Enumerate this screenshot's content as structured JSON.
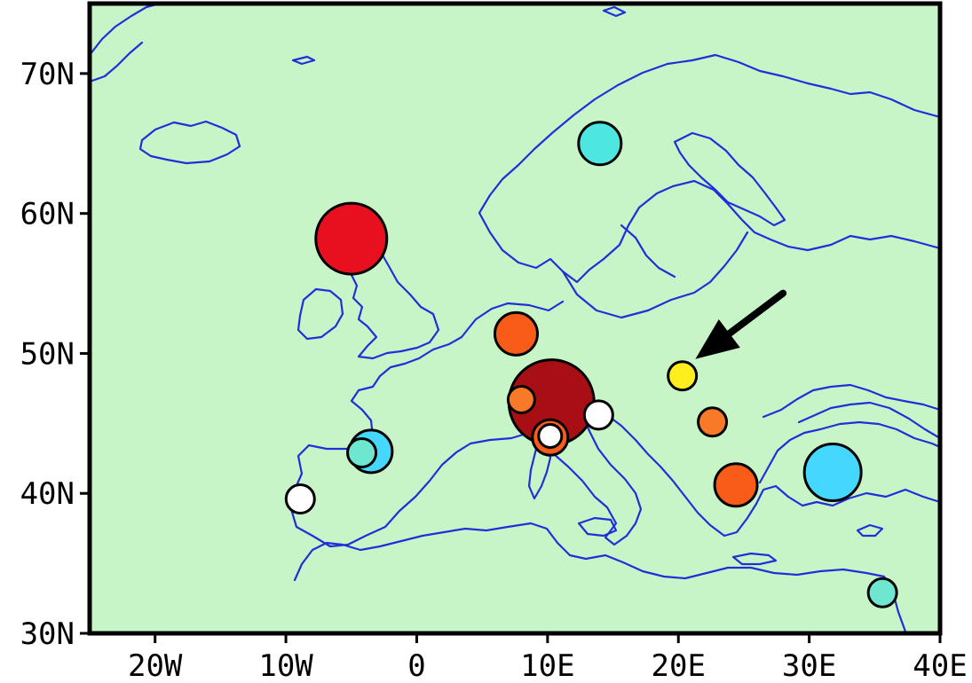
{
  "map": {
    "x_ticks": [
      {
        "lon": -20,
        "label": "20W"
      },
      {
        "lon": -10,
        "label": "10W"
      },
      {
        "lon": 0,
        "label": "0"
      },
      {
        "lon": 10,
        "label": "10E"
      },
      {
        "lon": 20,
        "label": "20E"
      },
      {
        "lon": 30,
        "label": "30E"
      },
      {
        "lon": 40,
        "label": "40E"
      }
    ],
    "y_ticks": [
      {
        "lat": 30,
        "label": "30N"
      },
      {
        "lat": 40,
        "label": "40N"
      },
      {
        "lat": 50,
        "label": "50N"
      },
      {
        "lat": 60,
        "label": "60N"
      },
      {
        "lat": 70,
        "label": "70N"
      }
    ],
    "lon_range": [
      -25,
      40
    ],
    "lat_range": [
      30,
      75
    ],
    "colors": {
      "ocean": "#c8f5c8",
      "coastline": "#2030d8",
      "frame": "#000000"
    },
    "markers": [
      {
        "name": "marker-scotland",
        "lon": -5.0,
        "lat": 58.2,
        "r": 40,
        "color": "#e8101e"
      },
      {
        "name": "marker-alps-large",
        "lon": 10.3,
        "lat": 46.5,
        "r": 48,
        "color": "#a80f14"
      },
      {
        "name": "marker-black-sea",
        "lon": 31.8,
        "lat": 41.5,
        "r": 32,
        "color": "#44d8ff"
      },
      {
        "name": "marker-scandinavia",
        "lon": 14.0,
        "lat": 65.0,
        "r": 24,
        "color": "#4de6e0"
      },
      {
        "name": "marker-germany",
        "lon": 7.6,
        "lat": 51.4,
        "r": 24,
        "color": "#f85c18"
      },
      {
        "name": "marker-greece",
        "lon": 24.4,
        "lat": 40.6,
        "r": 24,
        "color": "#f85c18"
      },
      {
        "name": "marker-spain-north-large",
        "lon": -3.5,
        "lat": 43.0,
        "r": 24,
        "color": "#44d8ff"
      },
      {
        "name": "marker-spain-north-small",
        "lon": -4.2,
        "lat": 42.9,
        "r": 16,
        "color": "#6fe6d0"
      },
      {
        "name": "marker-portugal",
        "lon": -8.9,
        "lat": 39.6,
        "r": 16,
        "color": "#ffffff"
      },
      {
        "name": "marker-switzerland",
        "lon": 8.0,
        "lat": 46.7,
        "r": 15,
        "color": "#f87a28"
      },
      {
        "name": "marker-italy-ring",
        "lon": 10.2,
        "lat": 44.0,
        "r": 20,
        "color": "#f85c18"
      },
      {
        "name": "marker-italy-white",
        "lon": 10.2,
        "lat": 44.1,
        "r": 13,
        "color": "#ffffff"
      },
      {
        "name": "marker-slovenia",
        "lon": 13.9,
        "lat": 45.6,
        "r": 16,
        "color": "#ffffff"
      },
      {
        "name": "marker-poland-yellow",
        "lon": 20.3,
        "lat": 48.4,
        "r": 16,
        "color": "#ffee1e"
      },
      {
        "name": "marker-romania",
        "lon": 22.6,
        "lat": 45.1,
        "r": 16,
        "color": "#f87a28"
      },
      {
        "name": "marker-levant",
        "lon": 35.6,
        "lat": 32.9,
        "r": 16,
        "color": "#6fe6d0"
      }
    ],
    "arrow": {
      "from_lon": 28.0,
      "from_lat": 54.3,
      "to_lon": 21.3,
      "to_lat": 49.6
    }
  }
}
